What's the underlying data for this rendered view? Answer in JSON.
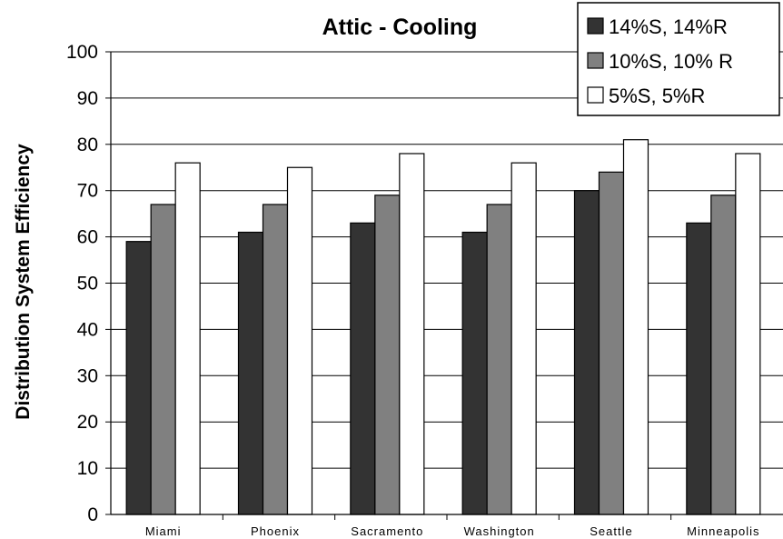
{
  "chart_data": {
    "type": "bar",
    "title": "Attic - Cooling",
    "xlabel": "",
    "ylabel": "Distribution System Efficiency",
    "ylim": [
      0,
      100
    ],
    "yticks": [
      0,
      10,
      20,
      30,
      40,
      50,
      60,
      70,
      80,
      90,
      100
    ],
    "categories": [
      "Miami",
      "Phoenix",
      "Sacramento",
      "Washington",
      "Seattle",
      "Minneapolis"
    ],
    "series": [
      {
        "name": "14%S, 14%R",
        "color": "#333333",
        "values": [
          59,
          61,
          63,
          61,
          70,
          63
        ]
      },
      {
        "name": "10%S, 10% R",
        "color": "#808080",
        "values": [
          67,
          67,
          69,
          67,
          74,
          69
        ]
      },
      {
        "name": "5%S, 5%R",
        "color": "#ffffff",
        "values": [
          76,
          75,
          78,
          76,
          81,
          78
        ]
      }
    ],
    "grid": true,
    "legend_position": "top-right"
  }
}
